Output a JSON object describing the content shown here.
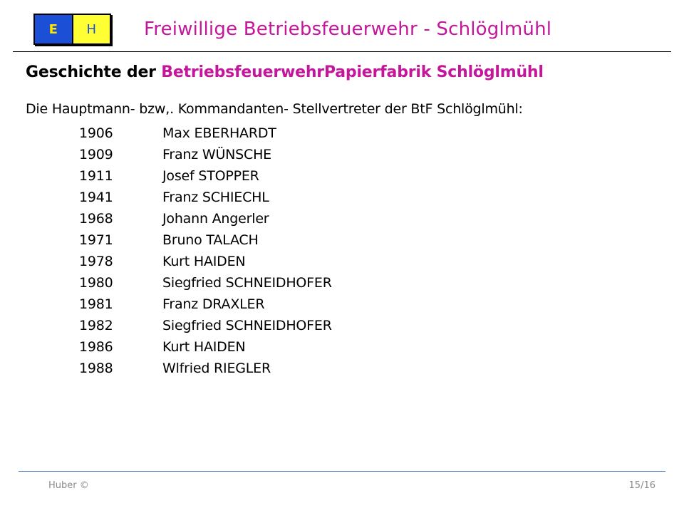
{
  "logo": {
    "left_letter": "E",
    "right_letter": "H"
  },
  "header": {
    "title": "Freiwillige Betriebsfeuerwehr - Schlöglmühl"
  },
  "section": {
    "title_prefix": "Geschichte der ",
    "title_highlight": "BetriebsfeuerwehrPapierfabrik Schlöglmühl"
  },
  "intro": "Die Hauptmann- bzw,. Kommandanten- Stellvertreter der BtF Schlöglmühl:",
  "entries": [
    {
      "year": "1906",
      "name": "Max EBERHARDT"
    },
    {
      "year": "1909",
      "name": "Franz WÜNSCHE"
    },
    {
      "year": "1911",
      "name": "Josef STOPPER"
    },
    {
      "year": "1941",
      "name": "Franz SCHIECHL"
    },
    {
      "year": "1968",
      "name": "Johann Angerler"
    },
    {
      "year": "1971",
      "name": "Bruno TALACH"
    },
    {
      "year": "1978",
      "name": "Kurt HAIDEN"
    },
    {
      "year": "1980",
      "name": "Siegfried SCHNEIDHOFER"
    },
    {
      "year": "1981",
      "name": "Franz DRAXLER"
    },
    {
      "year": "1982",
      "name": "Siegfried SCHNEIDHOFER"
    },
    {
      "year": "1986",
      "name": "Kurt HAIDEN"
    },
    {
      "year": "1988",
      "name": "Wlfried RIEGLER"
    }
  ],
  "footer": {
    "author": "Huber  ©",
    "page": "15/16"
  },
  "colors": {
    "accent_magenta": "#c4169a",
    "logo_blue": "#1b4fd6",
    "logo_yellow": "#ffff33",
    "footer_rule": "#4f7fc0"
  }
}
